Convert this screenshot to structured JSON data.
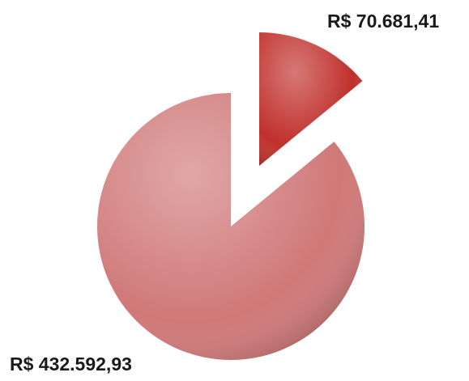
{
  "chart_data": {
    "type": "pie",
    "values": [
      70681.41,
      432592.93
    ],
    "value_labels": [
      "R$ 70.681,41",
      "R$ 432.592,93"
    ],
    "colors": [
      "#c0302c",
      "#d07878"
    ]
  }
}
